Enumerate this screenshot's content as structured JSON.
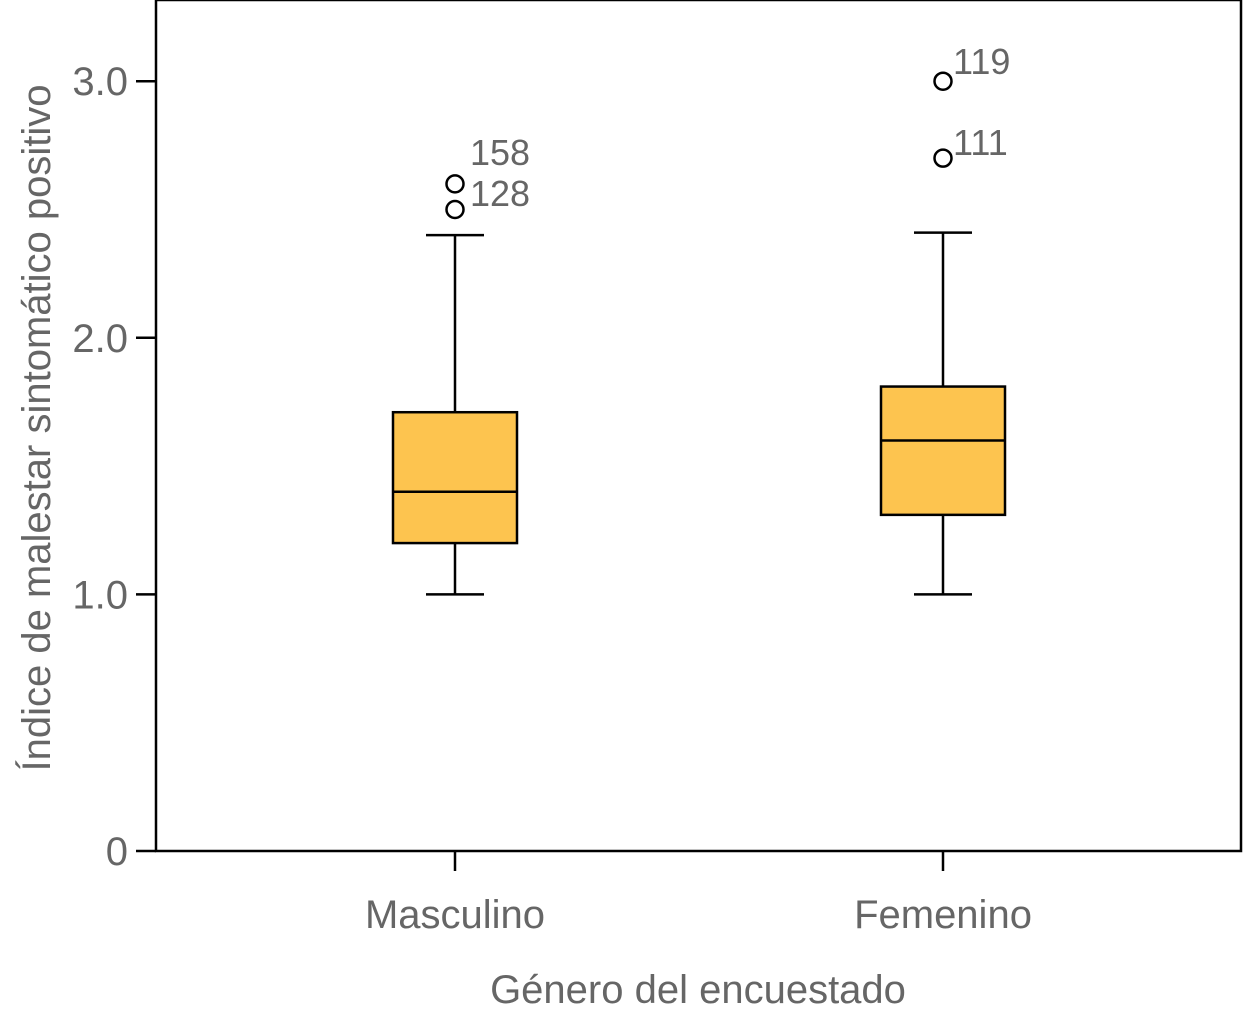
{
  "chart_data": {
    "type": "boxplot",
    "xlabel": "Género del encuestado",
    "ylabel": "Índice de malestar sintomático positivo",
    "ylim": [
      0,
      3.3
    ],
    "yticks": [
      {
        "value": 0,
        "label": "0"
      },
      {
        "value": 1.0,
        "label": "1.0"
      },
      {
        "value": 2.0,
        "label": "2.0"
      },
      {
        "value": 3.0,
        "label": "3.0"
      }
    ],
    "grid": false,
    "box_color": "#FDC44F",
    "categories": [
      "Masculino",
      "Femenino"
    ],
    "series": [
      {
        "name": "Masculino",
        "whisker_low": 1.0,
        "q1": 1.2,
        "median": 1.4,
        "q3": 1.71,
        "whisker_high": 2.4,
        "outliers": [
          {
            "value": 2.6,
            "label": "158"
          },
          {
            "value": 2.5,
            "label": "128"
          }
        ]
      },
      {
        "name": "Femenino",
        "whisker_low": 1.0,
        "q1": 1.31,
        "median": 1.6,
        "q3": 1.81,
        "whisker_high": 2.41,
        "outliers": [
          {
            "value": 3.0,
            "label": "119"
          },
          {
            "value": 2.7,
            "label": "111"
          }
        ]
      }
    ]
  }
}
